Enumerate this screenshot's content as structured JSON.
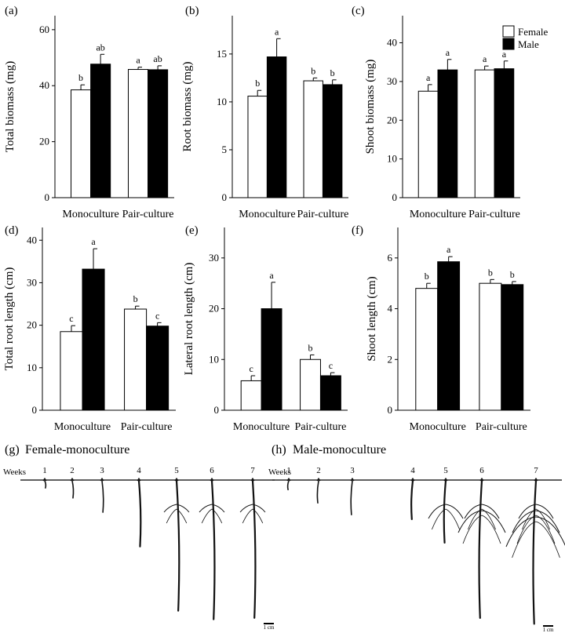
{
  "chart_data": [
    {
      "type": "bar",
      "panel": "(a)",
      "ylabel": "Total biomass (mg)",
      "categories": [
        "Monoculture",
        "Pair-culture"
      ],
      "ylim": [
        0,
        65
      ],
      "yticks": [
        0,
        20,
        40,
        60
      ],
      "series": [
        {
          "name": "Female",
          "values": [
            38.5,
            45.8
          ],
          "errors": [
            1.8,
            0.8
          ],
          "letters": [
            "b",
            "a"
          ]
        },
        {
          "name": "Male",
          "values": [
            47.7,
            45.7
          ],
          "errors": [
            3.5,
            1.4
          ],
          "letters": [
            "ab",
            "ab"
          ]
        }
      ]
    },
    {
      "type": "bar",
      "panel": "(b)",
      "ylabel": "Root biomass (mg)",
      "categories": [
        "Monoculture",
        "Pair-culture"
      ],
      "ylim": [
        0,
        19
      ],
      "yticks": [
        0,
        5,
        10,
        15
      ],
      "series": [
        {
          "name": "Female",
          "values": [
            10.6,
            12.2
          ],
          "errors": [
            0.6,
            0.3
          ],
          "letters": [
            "b",
            "b"
          ]
        },
        {
          "name": "Male",
          "values": [
            14.7,
            11.8
          ],
          "errors": [
            1.9,
            0.5
          ],
          "letters": [
            "a",
            "b"
          ]
        }
      ]
    },
    {
      "type": "bar",
      "panel": "(c)",
      "ylabel": "Shoot biomass (mg)",
      "categories": [
        "Monoculture",
        "Pair-culture"
      ],
      "ylim": [
        0,
        47
      ],
      "yticks": [
        0,
        10,
        20,
        30,
        40
      ],
      "series": [
        {
          "name": "Female",
          "values": [
            27.5,
            33.0
          ],
          "errors": [
            1.7,
            1.0
          ],
          "letters": [
            "a",
            "a"
          ]
        },
        {
          "name": "Male",
          "values": [
            33.0,
            33.3
          ],
          "errors": [
            2.7,
            2.0
          ],
          "letters": [
            "a",
            "a"
          ]
        }
      ]
    },
    {
      "type": "bar",
      "panel": "(d)",
      "ylabel": "Total root length (cm)",
      "categories": [
        "Monoculture",
        "Pair-culture"
      ],
      "ylim": [
        0,
        43
      ],
      "yticks": [
        0,
        10,
        20,
        30,
        40
      ],
      "series": [
        {
          "name": "Female",
          "values": [
            18.5,
            23.8
          ],
          "errors": [
            1.4,
            0.7
          ],
          "letters": [
            "c",
            "b"
          ]
        },
        {
          "name": "Male",
          "values": [
            33.2,
            19.8
          ],
          "errors": [
            4.8,
            0.8
          ],
          "letters": [
            "a",
            "c"
          ]
        }
      ]
    },
    {
      "type": "bar",
      "panel": "(e)",
      "ylabel": "Lateral root length (cm)",
      "categories": [
        "Monoculture",
        "Pair-culture"
      ],
      "ylim": [
        0,
        36
      ],
      "yticks": [
        0,
        10,
        20,
        30
      ],
      "series": [
        {
          "name": "Female",
          "values": [
            5.8,
            10.0
          ],
          "errors": [
            1.0,
            0.9
          ],
          "letters": [
            "c",
            "b"
          ]
        },
        {
          "name": "Male",
          "values": [
            20.0,
            6.8
          ],
          "errors": [
            5.2,
            0.6
          ],
          "letters": [
            "a",
            "c"
          ]
        }
      ]
    },
    {
      "type": "bar",
      "panel": "(f)",
      "ylabel": "Shoot length (cm)",
      "categories": [
        "Monoculture",
        "Pair-culture"
      ],
      "ylim": [
        0,
        7.2
      ],
      "yticks": [
        0,
        2,
        4,
        6
      ],
      "series": [
        {
          "name": "Female",
          "values": [
            4.8,
            5.0
          ],
          "errors": [
            0.2,
            0.15
          ],
          "letters": [
            "b",
            "b"
          ]
        },
        {
          "name": "Male",
          "values": [
            5.85,
            4.95
          ],
          "errors": [
            0.2,
            0.12
          ],
          "letters": [
            "a",
            "b"
          ]
        }
      ]
    }
  ],
  "legend": {
    "placement": "top-right of panel (c)",
    "items": [
      {
        "label": "Female",
        "color": "#ffffff"
      },
      {
        "label": "Male",
        "color": "#000000"
      }
    ]
  },
  "roots": [
    {
      "panel": "(g)",
      "title": "Female-monoculture",
      "weeks_label": "Weeks",
      "weeks": [
        "1",
        "2",
        "3",
        "4",
        "5",
        "6",
        "7"
      ],
      "root_lengths_fraction": [
        0.05,
        0.12,
        0.22,
        0.46,
        0.91,
        0.97,
        0.96
      ],
      "lateral_roots": [
        0,
        0,
        0,
        0,
        1,
        1,
        1
      ],
      "scale_label": "1 cm"
    },
    {
      "panel": "(h)",
      "title": "Male-monoculture",
      "weeks_label": "Weeks",
      "weeks": [
        "1",
        "2",
        "3",
        "4",
        "5",
        "6",
        "7"
      ],
      "root_lengths_fraction": [
        0.06,
        0.15,
        0.23,
        0.26,
        0.42,
        0.93,
        0.97
      ],
      "lateral_roots": [
        0,
        0,
        0,
        0,
        1,
        2,
        3
      ],
      "scale_label": "1 cm"
    }
  ],
  "colors": {
    "axis": "#000000",
    "female_fill": "#ffffff",
    "male_fill": "#000000",
    "root": "#111111"
  }
}
